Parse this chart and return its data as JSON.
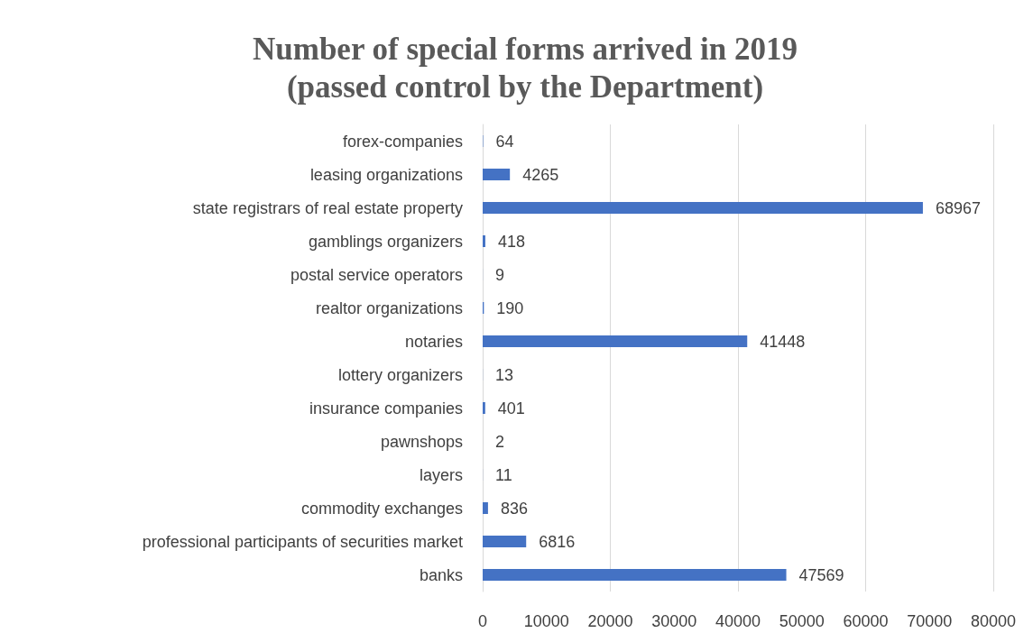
{
  "chart_data": {
    "type": "bar",
    "orientation": "horizontal",
    "title": "Number of special forms arrived in 2019\n(passed control by the Department)",
    "categories": [
      "forex-companies",
      "leasing organizations",
      "state registrars of real estate property",
      "gamblings organizers",
      "postal service operators",
      "realtor organizations",
      "notaries",
      "lottery organizers",
      "insurance companies",
      "pawnshops",
      "layers",
      "commodity exchanges",
      "professional participants of securities market",
      "banks"
    ],
    "values": [
      64,
      4265,
      68967,
      418,
      9,
      190,
      41448,
      13,
      401,
      2,
      11,
      836,
      6816,
      47569
    ],
    "color": "#4472c4",
    "xlim": [
      0,
      80000
    ],
    "xticks": [
      0,
      10000,
      20000,
      30000,
      40000,
      50000,
      60000,
      70000,
      80000
    ],
    "grid": "x",
    "data_labels": true
  }
}
